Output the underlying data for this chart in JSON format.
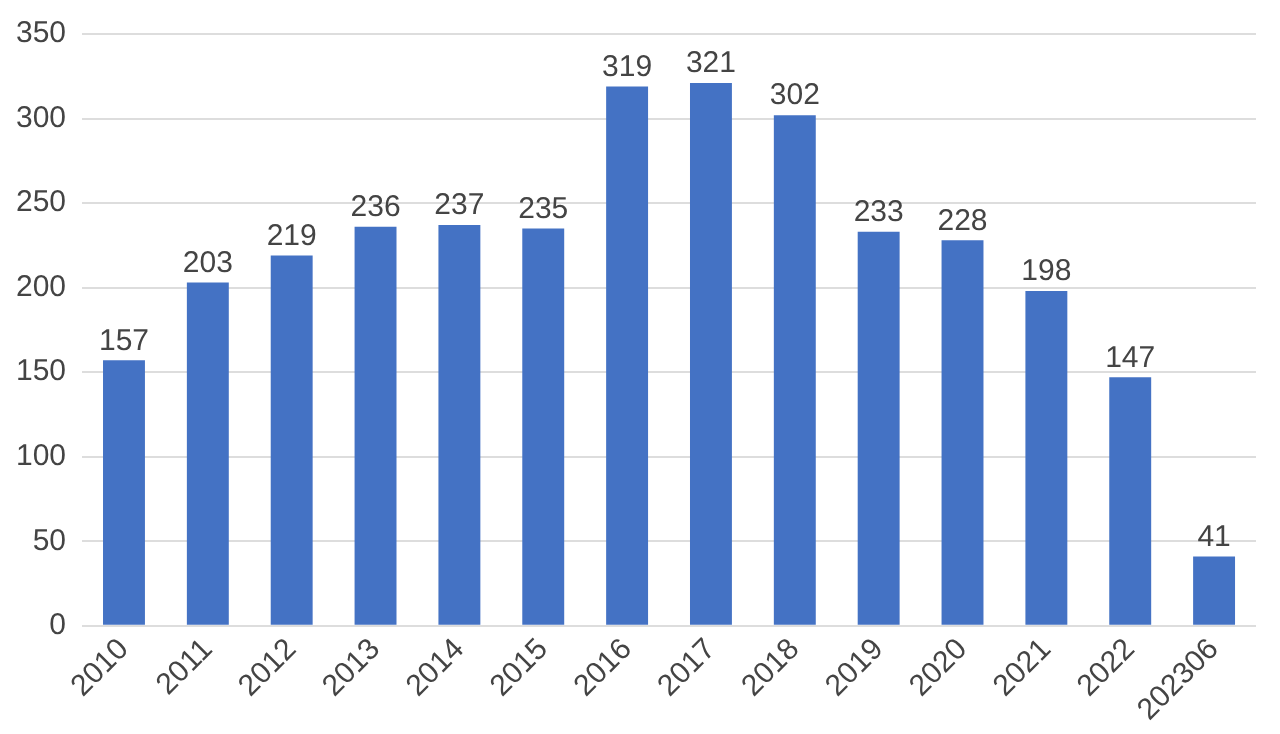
{
  "chart_data": {
    "type": "bar",
    "categories": [
      "2010",
      "2011",
      "2012",
      "2013",
      "2014",
      "2015",
      "2016",
      "2017",
      "2018",
      "2019",
      "2020",
      "2021",
      "2022",
      "202306"
    ],
    "values": [
      157,
      203,
      219,
      236,
      237,
      235,
      319,
      321,
      302,
      233,
      228,
      198,
      147,
      41
    ],
    "color": "#4472c4",
    "ylim": [
      0,
      350
    ],
    "yticks": [
      0,
      50,
      100,
      150,
      200,
      250,
      300,
      350
    ],
    "grid": "y",
    "data_labels": true,
    "legend": false
  }
}
